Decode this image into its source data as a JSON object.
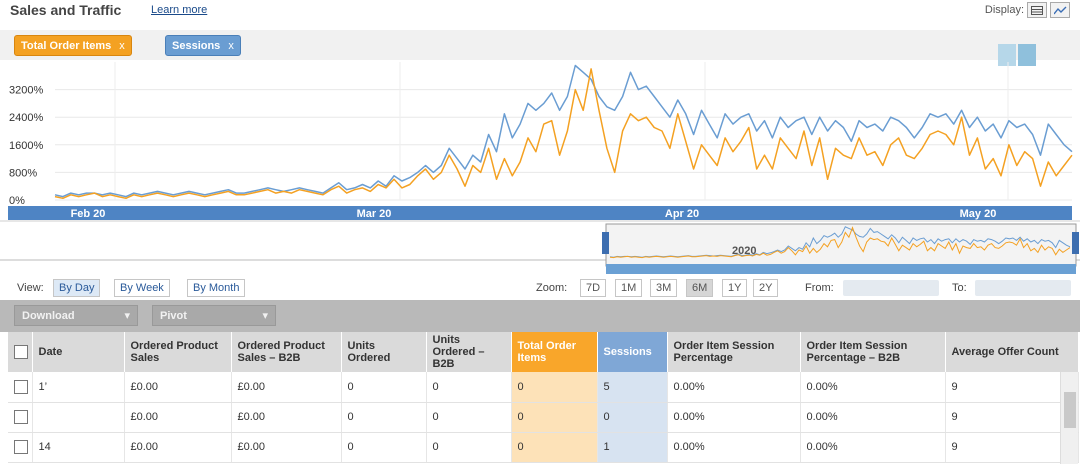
{
  "header": {
    "title": "Sales and Traffic",
    "learn_more": "Learn more",
    "display_label": "Display:"
  },
  "legend": [
    {
      "label": "Total Order Items",
      "close": "x",
      "color": "#f4a122"
    },
    {
      "label": "Sessions",
      "close": "x",
      "color": "#6a9dd2"
    }
  ],
  "chart_data": {
    "type": "line",
    "title": "Sales and Traffic",
    "y_ticks": [
      "3200%",
      "2400%",
      "1600%",
      "800%",
      "0%"
    ],
    "ylim": [
      0,
      4000
    ],
    "x_labels": [
      "Feb 20",
      "Mar 20",
      "Apr 20",
      "May 20"
    ],
    "series": [
      {
        "name": "Total Order Items",
        "color": "#f4a122",
        "values": [
          100,
          50,
          150,
          100,
          150,
          200,
          100,
          150,
          100,
          50,
          150,
          100,
          150,
          200,
          150,
          100,
          150,
          200,
          150,
          100,
          150,
          200,
          250,
          150,
          150,
          200,
          250,
          300,
          200,
          250,
          200,
          300,
          250,
          200,
          150,
          300,
          400,
          200,
          300,
          350,
          250,
          450,
          350,
          600,
          350,
          450,
          700,
          900,
          600,
          800,
          1300,
          900,
          400,
          1000,
          800,
          1500,
          600,
          1200,
          700,
          1100,
          1800,
          1400,
          2200,
          2300,
          1300,
          2000,
          3200,
          2600,
          3800,
          2600,
          1500,
          800,
          2000,
          2500,
          2300,
          2400,
          2100,
          2000,
          1500,
          2500,
          1700,
          900,
          1600,
          1300,
          1000,
          1800,
          1400,
          1700,
          2100,
          900,
          1300,
          900,
          1800,
          1500,
          1200,
          2000,
          1000,
          1800,
          600,
          1500,
          1300,
          1200,
          1800,
          1300,
          1400,
          1000,
          1600,
          1800,
          1300,
          1200,
          1500,
          1900,
          2000,
          1900,
          1600,
          2400,
          1300,
          1800,
          900,
          1200,
          700,
          1600,
          1000,
          1400,
          1200,
          400,
          1100,
          700,
          1000,
          1300
        ]
      },
      {
        "name": "Sessions",
        "color": "#6a9dd2",
        "values": [
          150,
          100,
          200,
          150,
          200,
          200,
          150,
          200,
          150,
          100,
          200,
          150,
          200,
          250,
          200,
          150,
          200,
          250,
          200,
          150,
          200,
          250,
          300,
          200,
          200,
          250,
          300,
          350,
          300,
          250,
          300,
          350,
          300,
          250,
          200,
          350,
          500,
          300,
          350,
          450,
          350,
          550,
          400,
          700,
          550,
          650,
          800,
          1000,
          800,
          1000,
          1500,
          1200,
          900,
          1300,
          1100,
          1900,
          1400,
          2500,
          1800,
          2200,
          2800,
          2600,
          2800,
          3100,
          2600,
          3000,
          3900,
          3700,
          3500,
          3000,
          2700,
          2600,
          3000,
          3700,
          3200,
          3300,
          3000,
          2700,
          2400,
          2900,
          2500,
          1900,
          2600,
          2200,
          1800,
          2500,
          2200,
          2400,
          2500,
          2000,
          2300,
          1800,
          2400,
          2100,
          2300,
          2400,
          1900,
          2400,
          2000,
          2300,
          2100,
          1700,
          2300,
          2100,
          2200,
          2000,
          2400,
          2300,
          2100,
          1800,
          2100,
          2500,
          2400,
          2500,
          2200,
          2600,
          2100,
          2400,
          2000,
          2200,
          1800,
          2300,
          2100,
          2200,
          1900,
          1300,
          2200,
          1900,
          1600,
          1400
        ]
      }
    ]
  },
  "navigator": {
    "year_label": "2020"
  },
  "toolbar": {
    "view_label": "View:",
    "view_buttons": [
      "By Day",
      "By Week",
      "By Month"
    ],
    "zoom_label": "Zoom:",
    "zoom_buttons": [
      "7D",
      "1M",
      "3M",
      "6M",
      "1Y",
      "2Y"
    ],
    "from_label": "From:",
    "to_label": "To:"
  },
  "actions": {
    "download_label": "Download",
    "pivot_label": "Pivot"
  },
  "table": {
    "columns": [
      "Date",
      "Ordered Product Sales",
      "Ordered Product Sales – B2B",
      "Units Ordered",
      "Units Ordered – B2B",
      "Total Order Items",
      "Sessions",
      "Order Item Session Percentage",
      "Order Item Session Percentage – B2B",
      "Average Offer Count"
    ],
    "rows": [
      [
        "1’",
        "£0.00",
        "£0.00",
        "0",
        "0",
        "0",
        "5",
        "0.00%",
        "0.00%",
        "9"
      ],
      [
        "",
        "£0.00",
        "£0.00",
        "0",
        "0",
        "0",
        "0",
        "0.00%",
        "0.00%",
        "9"
      ],
      [
        "14",
        "£0.00",
        "£0.00",
        "0",
        "0",
        "0",
        "1",
        "0.00%",
        "0.00%",
        "9"
      ]
    ]
  }
}
